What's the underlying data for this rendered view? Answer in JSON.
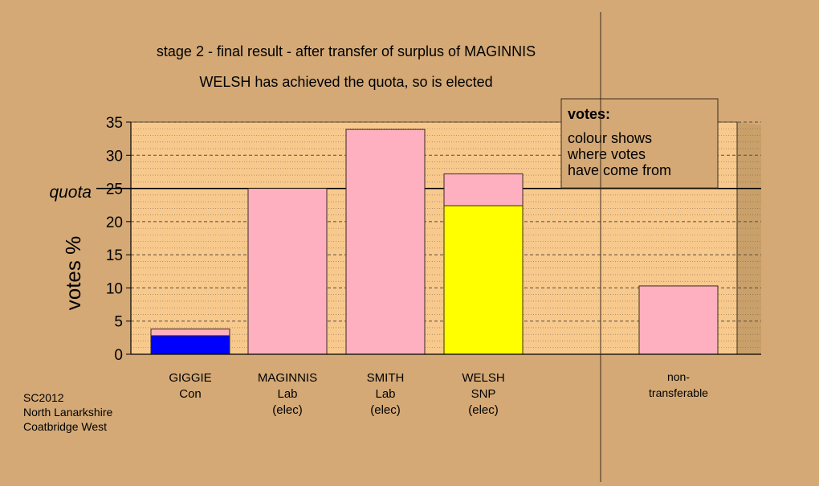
{
  "colors": {
    "background": "#d4a976",
    "plot_area": "#f7c98d",
    "con_blue": "#0000ff",
    "snp_yellow": "#ffff00",
    "lab_pink": "#ffb0c0",
    "grid": "#5a4a3a"
  },
  "chart_data": {
    "type": "bar",
    "stacked": true,
    "title": "stage 2 - final result - after transfer of surplus of MAGINNIS",
    "subtitle": "WELSH has achieved the quota, so is elected",
    "ylabel": "votes %",
    "ylim": [
      0,
      35
    ],
    "yticks": [
      "0",
      "5",
      "10",
      "15",
      "20",
      "25",
      "30",
      "35"
    ],
    "quota": 25,
    "quota_label": "quota",
    "grid": true,
    "categories": [
      {
        "name": "GIGGIE",
        "party": "Con",
        "status": ""
      },
      {
        "name": "MAGINNIS",
        "party": "Lab",
        "status": "(elec)"
      },
      {
        "name": "SMITH",
        "party": "Lab",
        "status": "(elec)"
      },
      {
        "name": "WELSH",
        "party": "SNP",
        "status": "(elec)"
      },
      {
        "name": "non-",
        "party": "transferable",
        "status": ""
      }
    ],
    "bars": [
      {
        "segments": [
          {
            "value": 2.8,
            "color": "#0000ff"
          },
          {
            "value": 1.0,
            "color": "#ffb0c0"
          }
        ]
      },
      {
        "segments": [
          {
            "value": 25.0,
            "color": "#ffb0c0"
          }
        ]
      },
      {
        "segments": [
          {
            "value": 33.9,
            "color": "#ffb0c0"
          }
        ]
      },
      {
        "segments": [
          {
            "value": 22.4,
            "color": "#ffff00"
          },
          {
            "value": 4.8,
            "color": "#ffb0c0"
          }
        ]
      },
      {
        "segments": [
          {
            "value": 10.3,
            "color": "#ffb0c0"
          }
        ]
      }
    ],
    "legend": {
      "title": "votes:",
      "lines": [
        "colour shows",
        "where votes",
        "have come from"
      ],
      "placement": "top-right"
    }
  },
  "footer": {
    "lines": [
      "SC2012",
      "North Lanarkshire",
      "Coatbridge West"
    ]
  }
}
